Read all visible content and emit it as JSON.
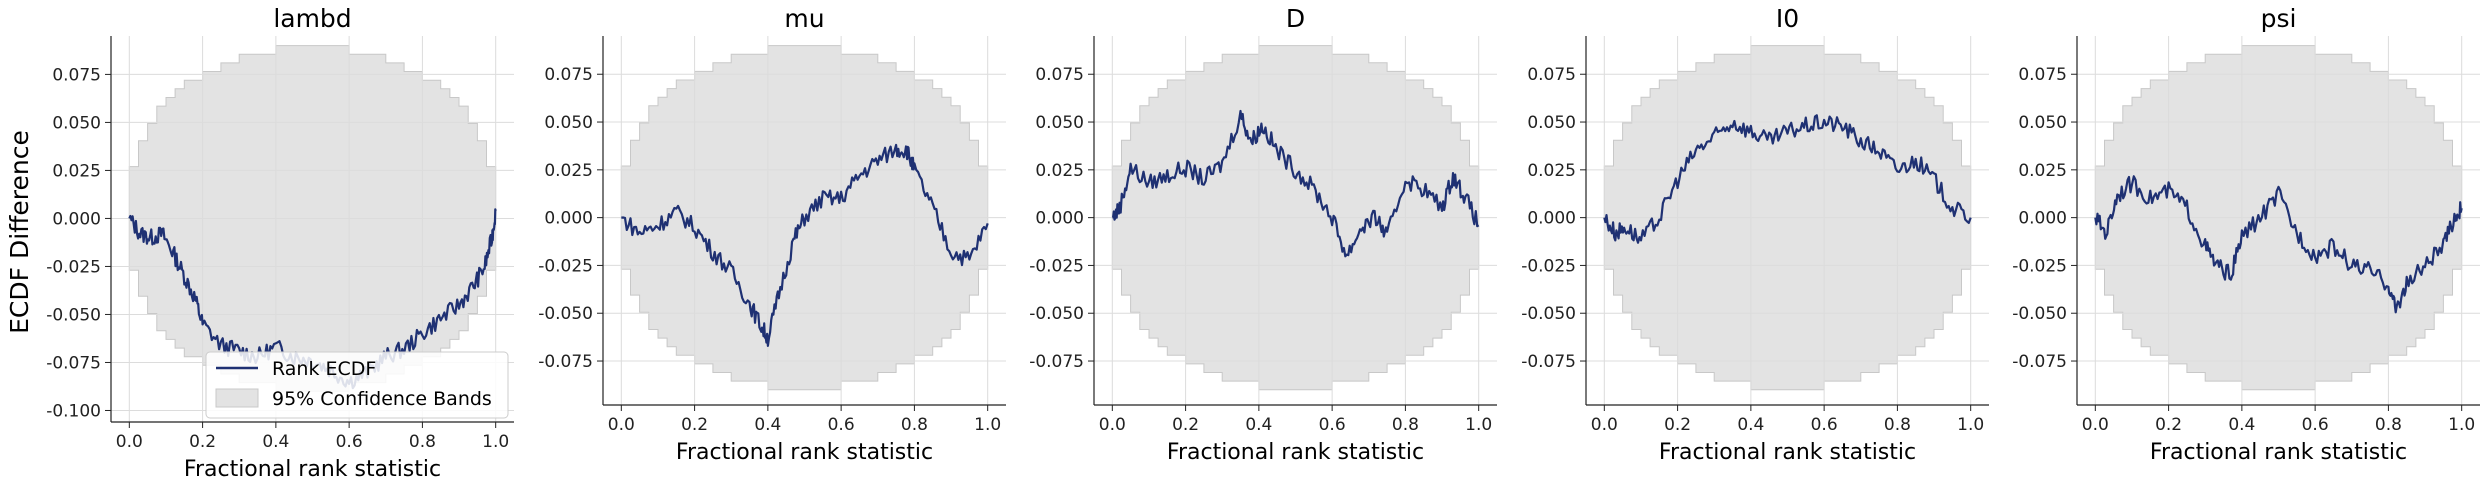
{
  "figure": {
    "ylabel": "ECDF Difference"
  },
  "colors": {
    "ecdf_line": "#1f3173",
    "band_fill": "#e3e3e3",
    "band_edge": "#c8c8c8",
    "grid": "#dcdcdc"
  },
  "legend": {
    "items": [
      {
        "label": "Rank ECDF"
      },
      {
        "label": "95% Confidence Bands"
      }
    ],
    "location": "lower-right of first panel"
  },
  "chart_data": [
    {
      "type": "line",
      "title": "lambd",
      "xlabel": "Fractional rank statistic",
      "xlim": [
        -0.05,
        1.05
      ],
      "ylim": [
        -0.106,
        0.095
      ],
      "xticks": [
        "0.0",
        "0.2",
        "0.4",
        "0.6",
        "0.8",
        "1.0"
      ],
      "yticks": [
        "0.075",
        "0.050",
        "0.025",
        "0.000",
        "-0.025",
        "-0.050",
        "-0.075",
        "-0.100"
      ],
      "ytick_values": [
        0.075,
        0.05,
        0.025,
        0,
        -0.025,
        -0.05,
        -0.075,
        -0.1
      ],
      "grid": true,
      "series": [
        {
          "name": "Rank ECDF",
          "x": [
            0,
            0.03,
            0.06,
            0.09,
            0.12,
            0.15,
            0.18,
            0.2,
            0.25,
            0.3,
            0.35,
            0.4,
            0.45,
            0.5,
            0.55,
            0.6,
            0.65,
            0.7,
            0.75,
            0.8,
            0.85,
            0.9,
            0.94,
            0.97,
            0.99,
            1.0
          ],
          "y": [
            0,
            -0.008,
            -0.01,
            -0.008,
            -0.018,
            -0.03,
            -0.042,
            -0.055,
            -0.066,
            -0.069,
            -0.072,
            -0.067,
            -0.072,
            -0.074,
            -0.079,
            -0.085,
            -0.08,
            -0.072,
            -0.068,
            -0.06,
            -0.052,
            -0.045,
            -0.035,
            -0.025,
            -0.01,
            0.004
          ]
        },
        {
          "name": "95% Confidence Bands",
          "band": "+/-"
        }
      ]
    },
    {
      "type": "line",
      "title": "mu",
      "xlabel": "Fractional rank statistic",
      "xlim": [
        -0.05,
        1.05
      ],
      "ylim": [
        -0.098,
        0.095
      ],
      "xticks": [
        "0.0",
        "0.2",
        "0.4",
        "0.6",
        "0.8",
        "1.0"
      ],
      "yticks": [
        "0.075",
        "0.050",
        "0.025",
        "0.000",
        "-0.025",
        "-0.050",
        "-0.075"
      ],
      "ytick_values": [
        0.075,
        0.05,
        0.025,
        0,
        -0.025,
        -0.05,
        -0.075
      ],
      "grid": true,
      "series": [
        {
          "name": "Rank ECDF",
          "x": [
            0,
            0.05,
            0.1,
            0.15,
            0.2,
            0.25,
            0.3,
            0.35,
            0.38,
            0.4,
            0.43,
            0.47,
            0.5,
            0.55,
            0.6,
            0.65,
            0.7,
            0.75,
            0.78,
            0.8,
            0.85,
            0.9,
            0.95,
            1.0
          ],
          "y": [
            0,
            -0.008,
            -0.004,
            0.003,
            -0.005,
            -0.018,
            -0.028,
            -0.045,
            -0.056,
            -0.063,
            -0.04,
            -0.012,
            0.0,
            0.01,
            0.01,
            0.022,
            0.03,
            0.036,
            0.035,
            0.025,
            0.005,
            -0.018,
            -0.022,
            -0.003
          ]
        },
        {
          "name": "95% Confidence Bands",
          "band": "+/-"
        }
      ]
    },
    {
      "type": "line",
      "title": "D",
      "xlabel": "Fractional rank statistic",
      "xlim": [
        -0.05,
        1.05
      ],
      "ylim": [
        -0.098,
        0.095
      ],
      "xticks": [
        "0.0",
        "0.2",
        "0.4",
        "0.6",
        "0.8",
        "1.0"
      ],
      "yticks": [
        "0.075",
        "0.050",
        "0.025",
        "0.000",
        "-0.025",
        "-0.050",
        "-0.075"
      ],
      "ytick_values": [
        0.075,
        0.05,
        0.025,
        0,
        -0.025,
        -0.05,
        -0.075
      ],
      "grid": true,
      "series": [
        {
          "name": "Rank ECDF",
          "x": [
            0,
            0.02,
            0.05,
            0.1,
            0.15,
            0.2,
            0.25,
            0.3,
            0.35,
            0.38,
            0.41,
            0.45,
            0.5,
            0.55,
            0.6,
            0.64,
            0.68,
            0.72,
            0.75,
            0.8,
            0.85,
            0.9,
            0.93,
            0.96,
            1.0
          ],
          "y": [
            0,
            0.005,
            0.026,
            0.018,
            0.022,
            0.026,
            0.02,
            0.028,
            0.054,
            0.04,
            0.048,
            0.035,
            0.025,
            0.015,
            0.0,
            -0.02,
            -0.005,
            0.0,
            -0.01,
            0.02,
            0.015,
            0.005,
            0.022,
            0.012,
            -0.004
          ]
        },
        {
          "name": "95% Confidence Bands",
          "band": "+/-"
        }
      ]
    },
    {
      "type": "line",
      "title": "I0",
      "xlabel": "Fractional rank statistic",
      "xlim": [
        -0.05,
        1.05
      ],
      "ylim": [
        -0.098,
        0.095
      ],
      "xticks": [
        "0.0",
        "0.2",
        "0.4",
        "0.6",
        "0.8",
        "1.0"
      ],
      "yticks": [
        "0.075",
        "0.050",
        "0.025",
        "0.000",
        "-0.025",
        "-0.050",
        "-0.075"
      ],
      "ytick_values": [
        0.075,
        0.05,
        0.025,
        0,
        -0.025,
        -0.05,
        -0.075
      ],
      "grid": true,
      "series": [
        {
          "name": "Rank ECDF",
          "x": [
            0,
            0.03,
            0.06,
            0.1,
            0.15,
            0.2,
            0.25,
            0.3,
            0.35,
            0.4,
            0.45,
            0.5,
            0.55,
            0.6,
            0.65,
            0.7,
            0.75,
            0.8,
            0.85,
            0.9,
            0.95,
            1.0
          ],
          "y": [
            0,
            -0.008,
            -0.005,
            -0.012,
            0.0,
            0.02,
            0.035,
            0.042,
            0.05,
            0.045,
            0.04,
            0.045,
            0.048,
            0.05,
            0.048,
            0.04,
            0.035,
            0.025,
            0.03,
            0.02,
            0.005,
            0.0
          ]
        },
        {
          "name": "95% Confidence Bands",
          "band": "+/-"
        }
      ]
    },
    {
      "type": "line",
      "title": "psi",
      "xlabel": "Fractional rank statistic",
      "xlim": [
        -0.05,
        1.05
      ],
      "ylim": [
        -0.098,
        0.095
      ],
      "xticks": [
        "0.0",
        "0.2",
        "0.4",
        "0.6",
        "0.8",
        "1.0"
      ],
      "yticks": [
        "0.075",
        "0.050",
        "0.025",
        "0.000",
        "-0.025",
        "-0.050",
        "-0.075"
      ],
      "ytick_values": [
        0.075,
        0.05,
        0.025,
        0,
        -0.025,
        -0.05,
        -0.075
      ],
      "grid": true,
      "series": [
        {
          "name": "Rank ECDF",
          "x": [
            0,
            0.03,
            0.06,
            0.1,
            0.15,
            0.2,
            0.25,
            0.3,
            0.33,
            0.37,
            0.4,
            0.45,
            0.5,
            0.55,
            0.6,
            0.65,
            0.7,
            0.75,
            0.8,
            0.82,
            0.85,
            0.9,
            0.95,
            0.98,
            1.0
          ],
          "y": [
            0,
            -0.008,
            0.012,
            0.018,
            0.01,
            0.014,
            0.005,
            -0.015,
            -0.025,
            -0.03,
            -0.01,
            0.0,
            0.012,
            -0.008,
            -0.02,
            -0.015,
            -0.025,
            -0.028,
            -0.035,
            -0.048,
            -0.035,
            -0.025,
            -0.015,
            0.0,
            0.005
          ]
        },
        {
          "name": "95% Confidence Bands",
          "band": "+/-"
        }
      ]
    }
  ]
}
